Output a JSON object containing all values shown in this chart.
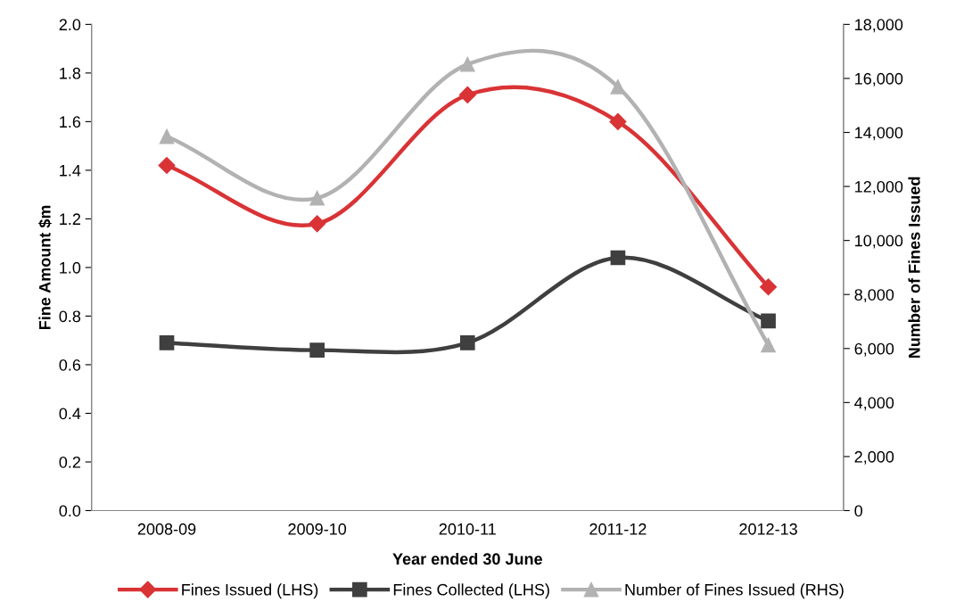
{
  "chart_data": {
    "type": "line",
    "xlabel": "Year ended 30 June",
    "ylabel": "Fine Amount $m",
    "y2label": "Number of Fines Issued",
    "categories": [
      "2008-09",
      "2009-10",
      "2010-11",
      "2011-12",
      "2012-13"
    ],
    "series": [
      {
        "name": "Fines Issued (LHS)",
        "color": "#d93336",
        "marker": "diamond",
        "values": [
          1.42,
          1.18,
          1.71,
          1.6,
          0.92
        ]
      },
      {
        "name": "Fines Collected (LHS)",
        "color": "#3f3f3f",
        "marker": "square",
        "values": [
          0.69,
          0.66,
          0.69,
          1.04,
          0.78
        ]
      },
      {
        "name": "Number of Fines Issued (RHS)",
        "color": "#b2b2b2",
        "marker": "triangle",
        "axis": "y2",
        "values": [
          13850,
          11570,
          16520,
          15690,
          6130
        ]
      }
    ],
    "ylim": [
      0,
      2.0
    ],
    "yticks": [
      {
        "value": 0,
        "label": "0.0"
      },
      {
        "value": 0.2,
        "label": "0.2"
      },
      {
        "value": 0.4,
        "label": "0.4"
      },
      {
        "value": 0.6,
        "label": "0.6"
      },
      {
        "value": 0.8,
        "label": "0.8"
      },
      {
        "value": 1.0,
        "label": "1.0"
      },
      {
        "value": 1.2,
        "label": "1.2"
      },
      {
        "value": 1.4,
        "label": "1.4"
      },
      {
        "value": 1.6,
        "label": "1.6"
      },
      {
        "value": 1.8,
        "label": "1.8"
      },
      {
        "value": 2.0,
        "label": "2.0"
      }
    ],
    "y2lim": [
      0,
      18000
    ],
    "y2ticks": [
      0,
      {
        "value": 2000,
        "label": "2,000"
      },
      {
        "value": 4000,
        "label": "4,000"
      },
      {
        "value": 6000,
        "label": "6,000"
      },
      {
        "value": 8000,
        "label": "8,000"
      },
      {
        "value": 10000,
        "label": "10,000"
      },
      {
        "value": 12000,
        "label": "12,000"
      },
      {
        "value": 14000,
        "label": "14,000"
      },
      {
        "value": 16000,
        "label": "16,000"
      },
      {
        "value": 18000,
        "label": "18,000"
      }
    ],
    "grid": false,
    "legend": "bottom",
    "line_style": "solid"
  }
}
